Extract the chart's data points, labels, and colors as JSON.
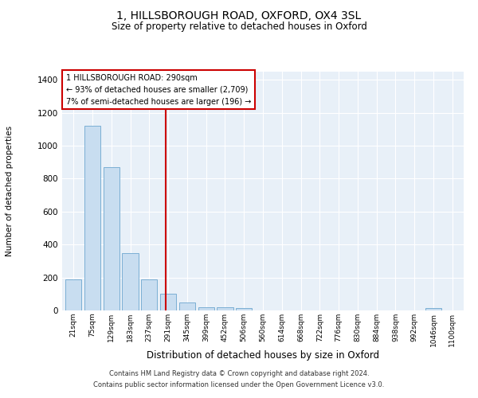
{
  "title": "1, HILLSBOROUGH ROAD, OXFORD, OX4 3SL",
  "subtitle": "Size of property relative to detached houses in Oxford",
  "xlabel": "Distribution of detached houses by size in Oxford",
  "ylabel": "Number of detached properties",
  "bar_color": "#c8ddf0",
  "bar_edge_color": "#7bafd4",
  "background_color": "#e8f0f8",
  "grid_color": "#ffffff",
  "fig_background": "#ffffff",
  "categories": [
    "21sqm",
    "75sqm",
    "129sqm",
    "183sqm",
    "237sqm",
    "291sqm",
    "345sqm",
    "399sqm",
    "452sqm",
    "506sqm",
    "560sqm",
    "614sqm",
    "668sqm",
    "722sqm",
    "776sqm",
    "830sqm",
    "884sqm",
    "938sqm",
    "992sqm",
    "1046sqm",
    "1100sqm"
  ],
  "values": [
    190,
    1120,
    870,
    350,
    190,
    100,
    50,
    20,
    20,
    15,
    0,
    0,
    0,
    0,
    0,
    0,
    0,
    0,
    0,
    15,
    0
  ],
  "ylim": [
    0,
    1450
  ],
  "yticks": [
    0,
    200,
    400,
    600,
    800,
    1000,
    1200,
    1400
  ],
  "property_line_x": 4.85,
  "annotation_text": "1 HILLSBOROUGH ROAD: 290sqm\n← 93% of detached houses are smaller (2,709)\n7% of semi-detached houses are larger (196) →",
  "footer_text": "Contains HM Land Registry data © Crown copyright and database right 2024.\nContains public sector information licensed under the Open Government Licence v3.0.",
  "annotation_box_color": "#cc0000",
  "red_line_color": "#cc0000"
}
